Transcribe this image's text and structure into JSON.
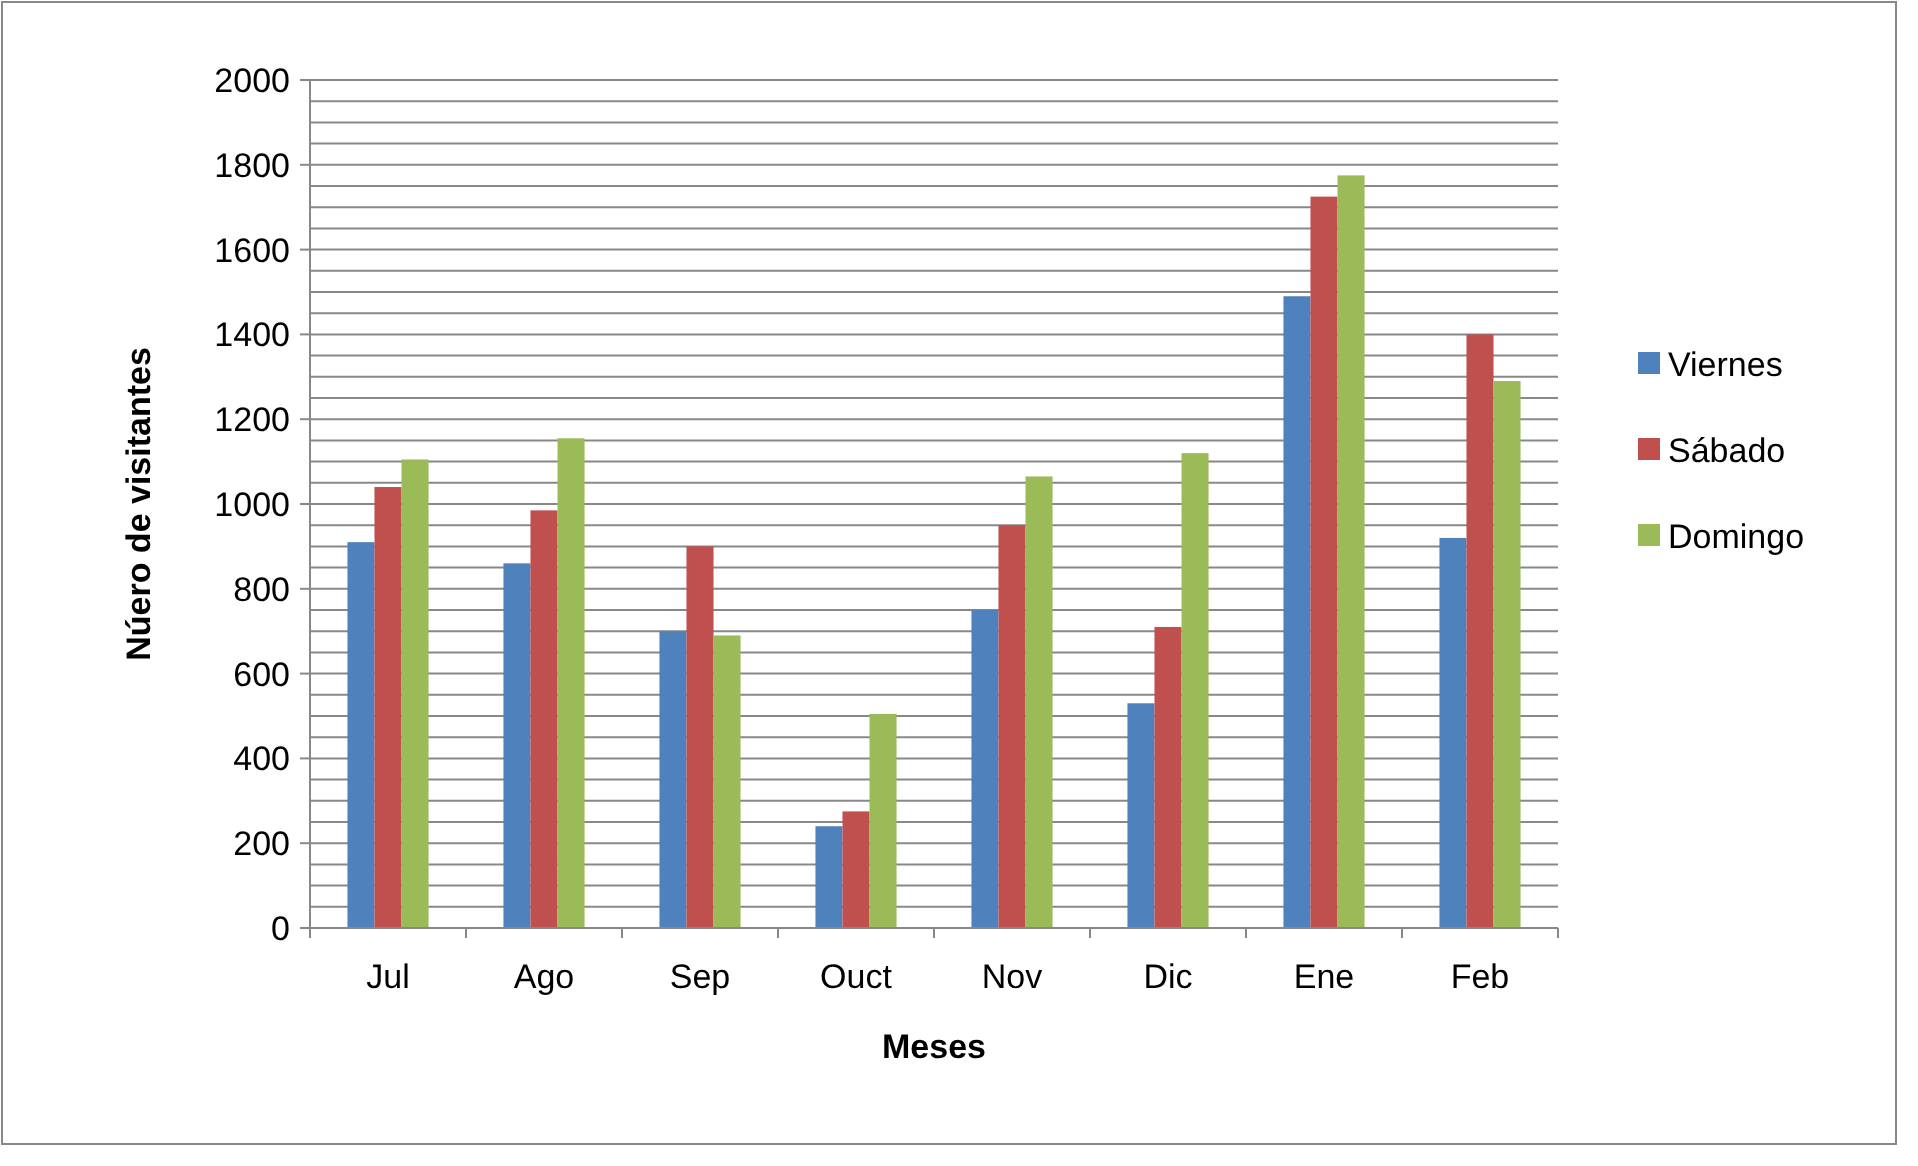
{
  "chart_data": {
    "type": "bar",
    "xlabel": "Meses",
    "ylabel": "Núero de visitantes",
    "categories": [
      "Jul",
      "Ago",
      "Sep",
      "Ouct",
      "Nov",
      "Dic",
      "Ene",
      "Feb"
    ],
    "series": [
      {
        "name": "Viernes",
        "color": "#4f81bd",
        "values": [
          910,
          860,
          700,
          240,
          750,
          530,
          1490,
          920
        ]
      },
      {
        "name": "Sábado",
        "color": "#c0504d",
        "values": [
          1040,
          985,
          900,
          275,
          950,
          710,
          1725,
          1400
        ]
      },
      {
        "name": "Domingo",
        "color": "#9bbb59",
        "values": [
          1105,
          1155,
          690,
          505,
          1065,
          1120,
          1775,
          1290
        ]
      }
    ],
    "ylim": [
      0,
      2000
    ],
    "yticks": [
      0,
      {
        "value": 50,
        "label": null
      },
      {
        "value": 100,
        "label": null
      },
      {
        "value": 150,
        "label": null
      },
      200,
      {
        "value": 250,
        "label": null
      },
      {
        "value": 300,
        "label": null
      },
      {
        "value": 350,
        "label": null
      },
      400,
      {
        "value": 450,
        "label": null
      },
      {
        "value": 500,
        "label": null
      },
      {
        "value": 550,
        "label": null
      },
      600,
      {
        "value": 650,
        "label": null
      },
      {
        "value": 700,
        "label": null
      },
      {
        "value": 750,
        "label": null
      },
      800,
      {
        "value": 850,
        "label": null
      },
      {
        "value": 900,
        "label": null
      },
      {
        "value": 950,
        "label": null
      },
      1000,
      {
        "value": 1050,
        "label": null
      },
      {
        "value": 1100,
        "label": null
      },
      {
        "value": 1150,
        "label": null
      },
      1200,
      {
        "value": 1250,
        "label": null
      },
      {
        "value": 1300,
        "label": null
      },
      {
        "value": 1350,
        "label": null
      },
      1400,
      {
        "value": 1450,
        "label": null
      },
      {
        "value": 1500,
        "label": null
      },
      {
        "value": 1550,
        "label": null
      },
      1600,
      {
        "value": 1650,
        "label": null
      },
      {
        "value": 1700,
        "label": null
      },
      {
        "value": 1750,
        "label": null
      },
      1800,
      {
        "value": 1850,
        "label": null
      },
      {
        "value": 1900,
        "label": null
      },
      {
        "value": 1950,
        "label": null
      },
      2000
    ],
    "grid": "y",
    "legend": "right"
  }
}
